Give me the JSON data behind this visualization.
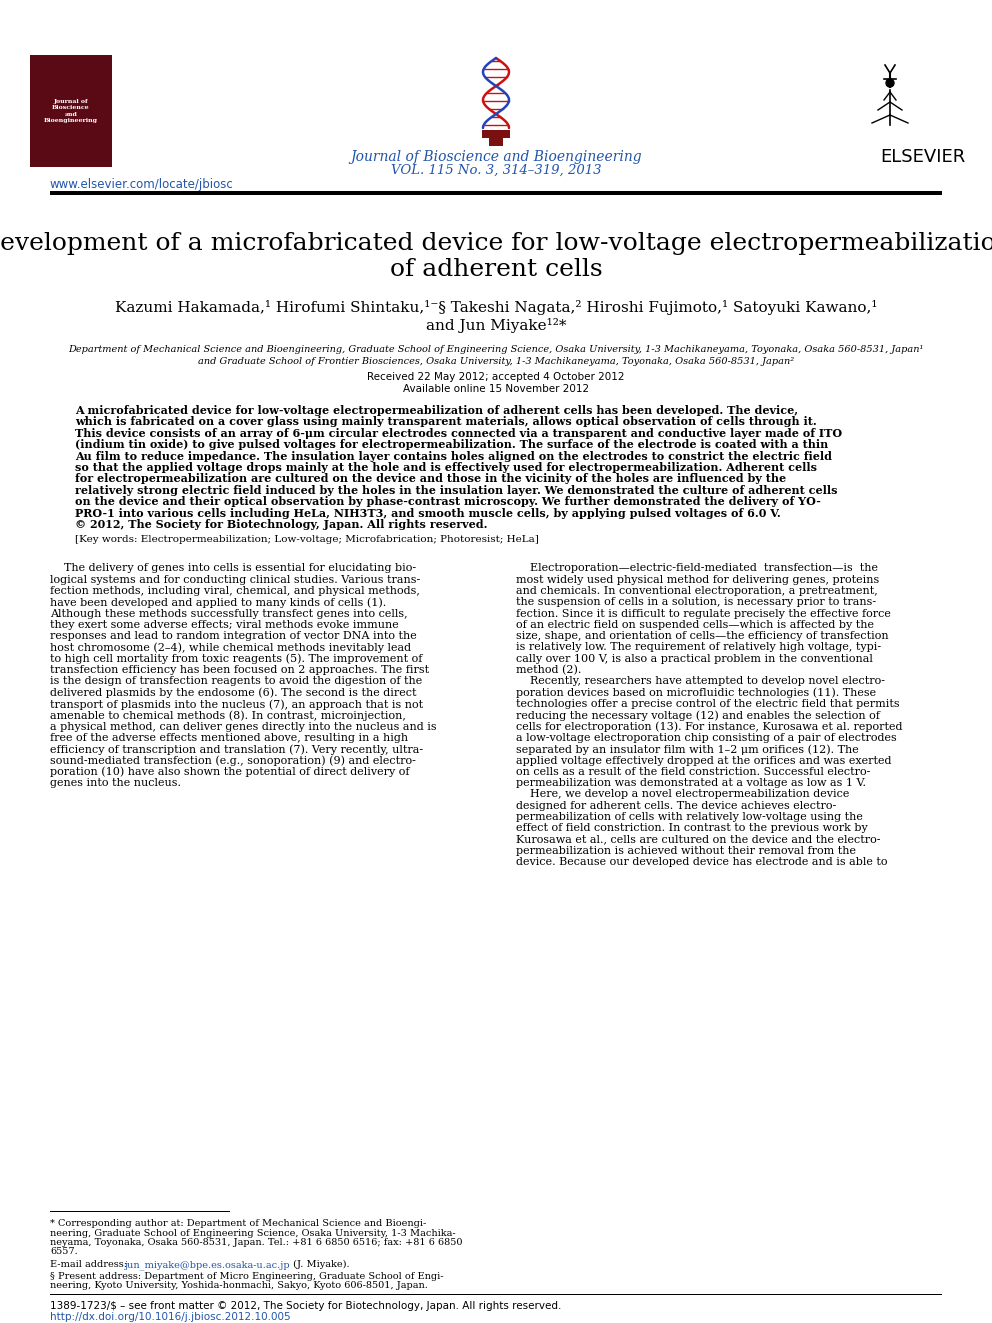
{
  "page_bg": "#ffffff",
  "journal_name": "Journal of Bioscience and Bioengineering",
  "journal_vol": "VOL. 115 No. 3, 314–319, 2013",
  "elsevier_text": "ELSEVIER",
  "url_text": "www.elsevier.com/locate/jbiosc",
  "title_line1": "Development of a microfabricated device for low-voltage electropermeabilization",
  "title_line2": "of adherent cells",
  "authors_line1": "Kazumi Hakamada,¹ Hirofumi Shintaku,¹⁻§ Takeshi Nagata,² Hiroshi Fujimoto,¹ Satoyuki Kawano,¹",
  "authors_line2": "and Jun Miyake¹²*",
  "affil1": "Department of Mechanical Science and Bioengineering, Graduate School of Engineering Science, Osaka University, 1-3 Machikaneyama, Toyonaka, Osaka 560-8531, Japan¹",
  "affil2": "and Graduate School of Frontier Biosciences, Osaka University, 1-3 Machikaneyama, Toyonaka, Osaka 560-8531, Japan²",
  "received": "Received 22 May 2012; accepted 4 October 2012",
  "available": "Available online 15 November 2012",
  "abstract_lines": [
    "A microfabricated device for low-voltage electropermeabilization of adherent cells has been developed. The device,",
    "which is fabricated on a cover glass using mainly transparent materials, allows optical observation of cells through it.",
    "This device consists of an array of 6-μm circular electrodes connected via a transparent and conductive layer made of ITO",
    "(indium tin oxide) to give pulsed voltages for electropermeabilization. The surface of the electrode is coated with a thin",
    "Au film to reduce impedance. The insulation layer contains holes aligned on the electrodes to constrict the electric field",
    "so that the applied voltage drops mainly at the hole and is effectively used for electropermeabilization. Adherent cells",
    "for electropermeabilization are cultured on the device and those in the vicinity of the holes are influenced by the",
    "relatively strong electric field induced by the holes in the insulation layer. We demonstrated the culture of adherent cells",
    "on the device and their optical observation by phase-contrast microscopy. We further demonstrated the delivery of YO-",
    "PRO-1 into various cells including HeLa, NIH3T3, and smooth muscle cells, by applying pulsed voltages of 6.0 V.",
    "© 2012, The Society for Biotechnology, Japan. All rights reserved."
  ],
  "keywords": "[Key words: Electropermeabilization; Low-voltage; Microfabrication; Photoresist; HeLa]",
  "col1_lines": [
    "    The delivery of genes into cells is essential for elucidating bio-",
    "logical systems and for conducting clinical studies. Various trans-",
    "fection methods, including viral, chemical, and physical methods,",
    "have been developed and applied to many kinds of cells (1).",
    "Although these methods successfully transfect genes into cells,",
    "they exert some adverse effects; viral methods evoke immune",
    "responses and lead to random integration of vector DNA into the",
    "host chromosome (2–4), while chemical methods inevitably lead",
    "to high cell mortality from toxic reagents (5). The improvement of",
    "transfection efficiency has been focused on 2 approaches. The first",
    "is the design of transfection reagents to avoid the digestion of the",
    "delivered plasmids by the endosome (6). The second is the direct",
    "transport of plasmids into the nucleus (7), an approach that is not",
    "amenable to chemical methods (8). In contrast, microinjection,",
    "a physical method, can deliver genes directly into the nucleus and is",
    "free of the adverse effects mentioned above, resulting in a high",
    "efficiency of transcription and translation (7). Very recently, ultra-",
    "sound-mediated transfection (e.g., sonoporation) (9) and electro-",
    "poration (10) have also shown the potential of direct delivery of",
    "genes into the nucleus."
  ],
  "col2_lines": [
    "    Electroporation—electric-field-mediated  transfection—is  the",
    "most widely used physical method for delivering genes, proteins",
    "and chemicals. In conventional electroporation, a pretreatment,",
    "the suspension of cells in a solution, is necessary prior to trans-",
    "fection. Since it is difficult to regulate precisely the effective force",
    "of an electric field on suspended cells—which is affected by the",
    "size, shape, and orientation of cells—the efficiency of transfection",
    "is relatively low. The requirement of relatively high voltage, typi-",
    "cally over 100 V, is also a practical problem in the conventional",
    "method (2).",
    "    Recently, researchers have attempted to develop novel electro-",
    "poration devices based on microfluidic technologies (11). These",
    "technologies offer a precise control of the electric field that permits",
    "reducing the necessary voltage (12) and enables the selection of",
    "cells for electroporation (13). For instance, Kurosawa et al. reported",
    "a low-voltage electroporation chip consisting of a pair of electrodes",
    "separated by an insulator film with 1–2 μm orifices (12). The",
    "applied voltage effectively dropped at the orifices and was exerted",
    "on cells as a result of the field constriction. Successful electro-",
    "permeabilization was demonstrated at a voltage as low as 1 V.",
    "    Here, we develop a novel electropermeabilization device",
    "designed for adherent cells. The device achieves electro-",
    "permeabilization of cells with relatively low-voltage using the",
    "effect of field constriction. In contrast to the previous work by",
    "Kurosawa et al., cells are cultured on the device and the electro-",
    "permeabilization is achieved without their removal from the",
    "device. Because our developed device has electrode and is able to"
  ],
  "footnote_star": "* Corresponding author at: Department of Mechanical Science and Bioengineering, Graduate School of Engineering Science, Osaka University, 1-3 Machikaneyama, Toyonaka, Osaka 560-8531, Japan. Tel.: +81 6 6850 6516; fax: +81 6 6850 6557.",
  "footnote_email_label": "E-mail address:",
  "footnote_email": "jun_miyake@bpe.es.osaka-u.ac.jp",
  "footnote_email_suffix": " (J. Miyake).",
  "footnote_section": "§ Present address: Department of Micro Engineering, Graduate School of Engineering, Kyoto University, Yoshida-honmachi, Sakyo, Kyoto 606-8501, Japan.",
  "footer1": "1389-1723/$ – see front matter © 2012, The Society for Biotechnology, Japan. All rights reserved.",
  "footer2": "http://dx.doi.org/10.1016/j.jbiosc.2012.10.005",
  "journal_color": "#2255aa",
  "url_color": "#2255aa",
  "link_color": "#2255aa"
}
